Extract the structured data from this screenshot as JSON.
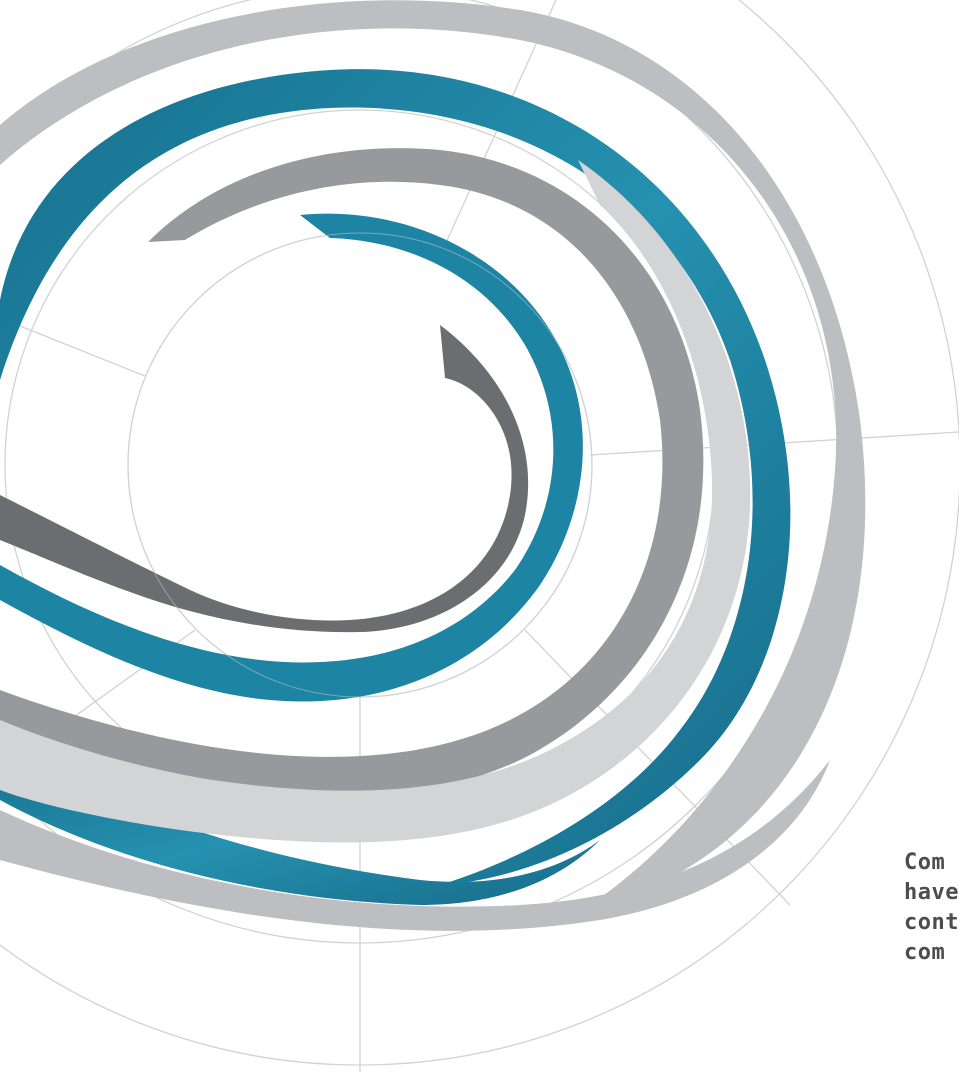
{
  "caption": {
    "lines": [
      "Com",
      "have",
      "cont",
      "com"
    ]
  },
  "colors": {
    "background": "#ffffff",
    "grid_line": "#d2d2d4",
    "teal": "#1e84a3",
    "gray_dark": "#6c6d71",
    "gray_mid": "#98999c",
    "gray_light": "#bdbec1",
    "gray_pale": "#d3d4d6",
    "caption_text": "#4d4d50"
  }
}
